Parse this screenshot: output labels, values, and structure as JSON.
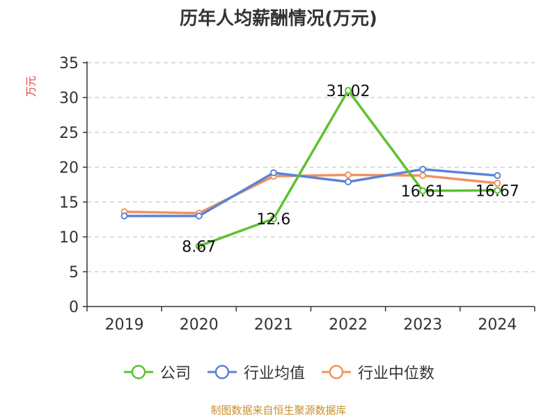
{
  "title": "历年人均薪酬情况(万元)",
  "footer": "制图数据来自恒生聚源数据库",
  "colors": {
    "company": "#5cc22f",
    "industry_avg": "#5b82d8",
    "industry_median": "#f2925e",
    "ylabel": "#e03c3c",
    "footer": "#c8902a"
  },
  "chart_data": {
    "type": "line",
    "title": "历年人均薪酬情况(万元)",
    "xlabel": "",
    "ylabel": "万元",
    "categories": [
      "2019",
      "2020",
      "2021",
      "2022",
      "2023",
      "2024"
    ],
    "ylim": [
      0,
      35
    ],
    "yticks": [
      0,
      5,
      10,
      15,
      20,
      25,
      30,
      35
    ],
    "grid": true,
    "legend_position": "bottom",
    "series": [
      {
        "name": "公司",
        "values": [
          null,
          8.67,
          12.6,
          31.02,
          16.61,
          16.67
        ],
        "labels": [
          "",
          "8.67",
          "12.6",
          "31.02",
          "16.61",
          "16.67"
        ]
      },
      {
        "name": "行业均值",
        "values": [
          13.0,
          13.0,
          19.2,
          17.9,
          19.7,
          18.8
        ]
      },
      {
        "name": "行业中位数",
        "values": [
          13.6,
          13.4,
          18.7,
          18.9,
          18.8,
          17.7
        ]
      }
    ]
  }
}
